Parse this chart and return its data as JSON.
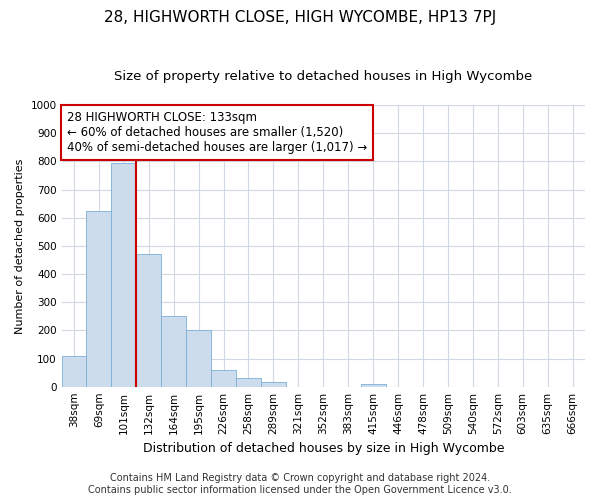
{
  "title": "28, HIGHWORTH CLOSE, HIGH WYCOMBE, HP13 7PJ",
  "subtitle": "Size of property relative to detached houses in High Wycombe",
  "xlabel": "Distribution of detached houses by size in High Wycombe",
  "ylabel": "Number of detached properties",
  "categories": [
    "38sqm",
    "69sqm",
    "101sqm",
    "132sqm",
    "164sqm",
    "195sqm",
    "226sqm",
    "258sqm",
    "289sqm",
    "321sqm",
    "352sqm",
    "383sqm",
    "415sqm",
    "446sqm",
    "478sqm",
    "509sqm",
    "540sqm",
    "572sqm",
    "603sqm",
    "635sqm",
    "666sqm"
  ],
  "values": [
    110,
    625,
    795,
    470,
    250,
    200,
    60,
    30,
    15,
    0,
    0,
    0,
    10,
    0,
    0,
    0,
    0,
    0,
    0,
    0,
    0
  ],
  "bar_color": "#cddcec",
  "bar_edge_color": "#7aafd4",
  "vline_color": "#cc0000",
  "vline_x": 2.5,
  "annotation_line1": "28 HIGHWORTH CLOSE: 133sqm",
  "annotation_line2": "← 60% of detached houses are smaller (1,520)",
  "annotation_line3": "40% of semi-detached houses are larger (1,017) →",
  "ylim": [
    0,
    1000
  ],
  "yticks": [
    0,
    100,
    200,
    300,
    400,
    500,
    600,
    700,
    800,
    900,
    1000
  ],
  "footer1": "Contains HM Land Registry data © Crown copyright and database right 2024.",
  "footer2": "Contains public sector information licensed under the Open Government Licence v3.0.",
  "background_color": "#ffffff",
  "plot_bg_color": "#ffffff",
  "grid_color": "#d0d8e4",
  "title_fontsize": 11,
  "subtitle_fontsize": 9.5,
  "xlabel_fontsize": 9,
  "ylabel_fontsize": 8,
  "tick_fontsize": 7.5,
  "annotation_fontsize": 8.5,
  "footer_fontsize": 7
}
